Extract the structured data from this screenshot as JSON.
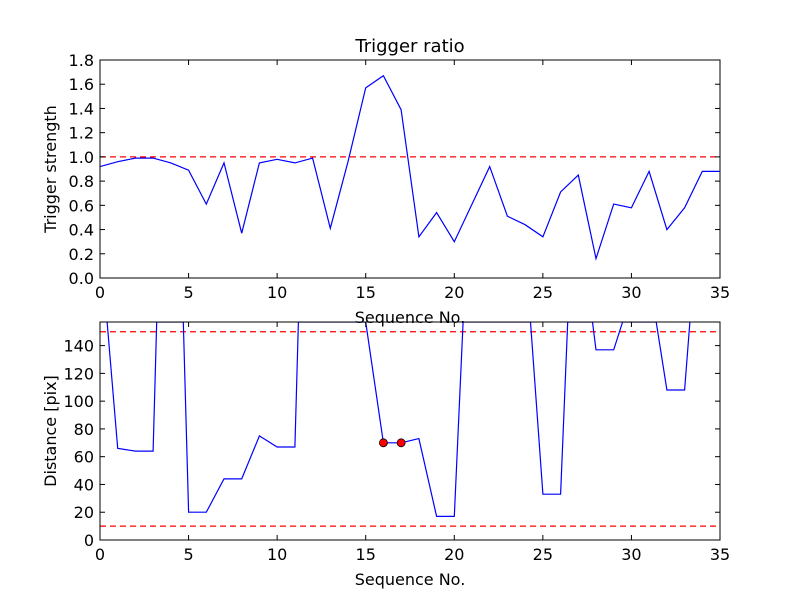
{
  "chart_data": [
    {
      "type": "line",
      "title": "Trigger ratio",
      "xlabel": "Sequence No.",
      "ylabel": "Trigger strength",
      "xlim": [
        0,
        35
      ],
      "ylim": [
        0,
        1.8
      ],
      "xticks": [
        "0",
        "5",
        "10",
        "15",
        "20",
        "25",
        "30",
        "35"
      ],
      "yticks": [
        "0.0",
        "0.2",
        "0.4",
        "0.6",
        "0.8",
        "1.0",
        "1.2",
        "1.4",
        "1.6",
        "1.8"
      ],
      "grid": false,
      "line_color": "#0000ff",
      "threshold_color": "#ff0000",
      "thresholds": [
        1.0
      ],
      "series": [
        {
          "x": [
            0,
            1,
            2,
            3,
            4,
            5,
            6,
            7,
            8,
            9,
            10,
            11,
            12,
            13,
            14,
            15,
            16,
            17,
            18,
            19,
            20,
            21,
            22,
            23,
            24,
            25,
            26,
            27,
            28,
            29,
            30,
            31,
            32,
            33,
            34,
            35
          ],
          "values": [
            0.92,
            0.96,
            0.99,
            0.99,
            0.95,
            0.89,
            0.61,
            0.95,
            0.37,
            0.95,
            0.98,
            0.95,
            0.99,
            0.41,
            0.96,
            1.57,
            1.67,
            1.39,
            0.34,
            0.54,
            0.3,
            0.61,
            0.92,
            0.51,
            0.44,
            0.34,
            0.71,
            0.85,
            0.16,
            0.61,
            0.58,
            0.88,
            0.4,
            0.58,
            0.88,
            0.88
          ]
        }
      ]
    },
    {
      "type": "line",
      "title": "",
      "xlabel": "Sequence No.",
      "ylabel": "Distance [pix]",
      "xlim": [
        0,
        35
      ],
      "ylim": [
        0,
        157
      ],
      "xticks": [
        "0",
        "5",
        "10",
        "15",
        "20",
        "25",
        "30",
        "35"
      ],
      "yticks": [
        "0",
        "20",
        "40",
        "60",
        "80",
        "100",
        "120",
        "140"
      ],
      "grid": false,
      "line_color": "#0000ff",
      "threshold_color": "#ff0000",
      "marker_color": "#ff0000",
      "thresholds": [
        10,
        150
      ],
      "series": [
        {
          "x": [
            0.4,
            1,
            2,
            3,
            3.2,
            4.7,
            5,
            6,
            7,
            8,
            9,
            10,
            11,
            11.2,
            15,
            16,
            17,
            18,
            19,
            20,
            20.5,
            24.3,
            25,
            26,
            26.4,
            27.8,
            28,
            29,
            29.5,
            31.4,
            32,
            33,
            33.3
          ],
          "values": [
            157,
            66,
            64,
            64,
            157,
            157,
            20,
            20,
            44,
            44,
            75,
            67,
            67,
            157,
            157,
            70,
            70,
            73,
            17,
            17,
            157,
            157,
            33,
            33,
            157,
            157,
            137,
            137,
            157,
            157,
            108,
            108,
            157
          ]
        }
      ],
      "markers": {
        "x": [
          16,
          17
        ],
        "values": [
          70,
          70
        ]
      }
    }
  ]
}
